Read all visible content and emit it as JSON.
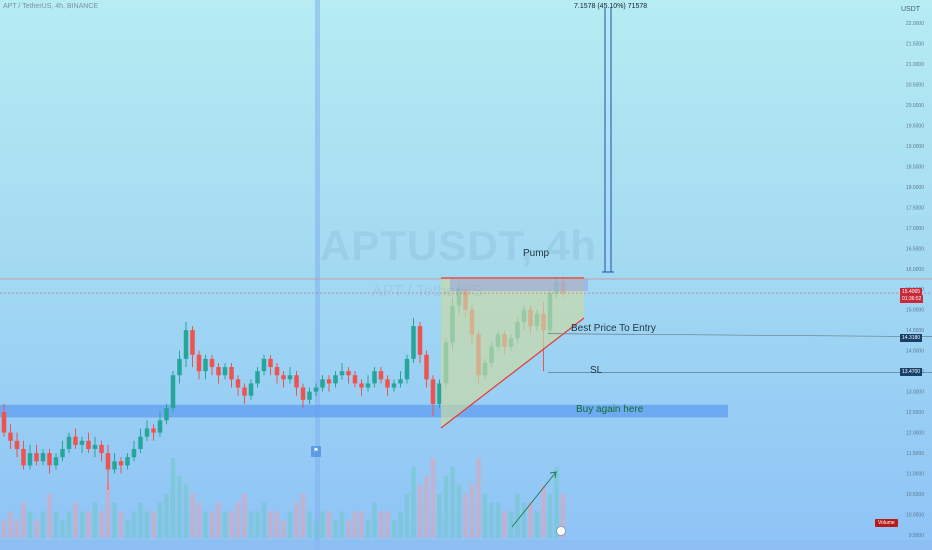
{
  "header": {
    "title": "APT / TetherUS, 4h, BINANCE"
  },
  "watermark": {
    "symbol": "APTUSDT, 4h",
    "sub": "APT / TetherUS"
  },
  "price_axis": {
    "unit": "USDT",
    "ticks": [
      "22.0000",
      "21.5000",
      "21.0000",
      "20.5000",
      "20.0000",
      "19.5000",
      "19.0000",
      "18.5000",
      "18.0000",
      "17.5000",
      "17.0000",
      "16.5000",
      "16.0000",
      "15.5000",
      "15.0000",
      "14.5000",
      "14.0000",
      "13.5000",
      "13.0000",
      "12.5000",
      "12.0000",
      "11.5000",
      "11.0000",
      "10.5000",
      "10.0000",
      "9.5000"
    ]
  },
  "price_tags": {
    "current": "15.4065",
    "current_time": "01:36:52",
    "entry": "14.3180",
    "sl": "13.4700"
  },
  "measure": {
    "label": "7.1578 (45.10%) 71578"
  },
  "annotations": {
    "pump": "Pump",
    "best_entry": "Best Price To Entry",
    "sl": "SL",
    "buy_again": "Buy again here"
  },
  "volume_label": "Volume",
  "colors": {
    "bull": "#26a69a",
    "bear": "#ef5350",
    "zone": "#5f9ef0",
    "triangle_fill": "#c7d9a8",
    "triangle_line": "#e53935",
    "measure_line": "#1f4fa8"
  },
  "chart_data": {
    "type": "candlestick",
    "title": "APTUSDT, 4h",
    "ylabel": "USDT",
    "ylim": [
      9.5,
      22.2
    ],
    "last_price": 15.4065,
    "levels": {
      "entry": 14.318,
      "sl": 13.47,
      "buy_zone": [
        12.37,
        12.68
      ],
      "resistance": 15.75
    },
    "candles": [
      [
        12.5,
        12.0,
        12.7,
        11.9
      ],
      [
        12.0,
        11.8,
        12.2,
        11.6
      ],
      [
        11.8,
        11.6,
        12.0,
        11.4
      ],
      [
        11.6,
        11.2,
        11.8,
        11.1
      ],
      [
        11.2,
        11.5,
        11.7,
        11.1
      ],
      [
        11.5,
        11.3,
        11.7,
        11.2
      ],
      [
        11.3,
        11.5,
        11.6,
        11.2
      ],
      [
        11.5,
        11.2,
        11.6,
        11.0
      ],
      [
        11.2,
        11.4,
        11.5,
        11.1
      ],
      [
        11.4,
        11.6,
        11.8,
        11.3
      ],
      [
        11.6,
        11.9,
        12.0,
        11.5
      ],
      [
        11.9,
        11.7,
        12.1,
        11.6
      ],
      [
        11.7,
        11.8,
        11.9,
        11.5
      ],
      [
        11.8,
        11.6,
        12.0,
        11.5
      ],
      [
        11.6,
        11.7,
        11.9,
        11.4
      ],
      [
        11.7,
        11.5,
        11.8,
        11.3
      ],
      [
        11.5,
        11.1,
        11.7,
        10.6
      ],
      [
        11.1,
        11.3,
        11.5,
        11.0
      ],
      [
        11.3,
        11.2,
        11.4,
        11.0
      ],
      [
        11.2,
        11.4,
        11.5,
        11.1
      ],
      [
        11.4,
        11.6,
        11.8,
        11.3
      ],
      [
        11.6,
        11.9,
        12.1,
        11.5
      ],
      [
        11.9,
        12.1,
        12.3,
        11.8
      ],
      [
        12.1,
        12.0,
        12.2,
        11.8
      ],
      [
        12.0,
        12.3,
        12.5,
        11.9
      ],
      [
        12.3,
        12.6,
        12.7,
        12.2
      ],
      [
        12.6,
        13.4,
        13.5,
        12.5
      ],
      [
        13.4,
        13.8,
        14.0,
        13.2
      ],
      [
        13.8,
        14.5,
        14.7,
        13.6
      ],
      [
        14.5,
        13.9,
        14.6,
        13.6
      ],
      [
        13.9,
        13.5,
        14.0,
        13.3
      ],
      [
        13.5,
        13.8,
        13.9,
        13.3
      ],
      [
        13.8,
        13.6,
        13.9,
        13.4
      ],
      [
        13.6,
        13.4,
        13.7,
        13.2
      ],
      [
        13.4,
        13.6,
        13.7,
        13.3
      ],
      [
        13.6,
        13.3,
        13.7,
        13.1
      ],
      [
        13.3,
        13.1,
        13.4,
        12.9
      ],
      [
        13.1,
        12.9,
        13.2,
        12.7
      ],
      [
        12.9,
        13.2,
        13.3,
        12.8
      ],
      [
        13.2,
        13.5,
        13.6,
        13.1
      ],
      [
        13.5,
        13.8,
        13.9,
        13.4
      ],
      [
        13.8,
        13.6,
        13.9,
        13.4
      ],
      [
        13.6,
        13.4,
        13.7,
        13.2
      ],
      [
        13.4,
        13.3,
        13.5,
        13.1
      ],
      [
        13.3,
        13.4,
        13.6,
        13.2
      ],
      [
        13.4,
        13.1,
        13.5,
        12.9
      ],
      [
        13.1,
        12.8,
        13.2,
        12.6
      ],
      [
        12.8,
        13.0,
        13.1,
        12.7
      ],
      [
        13.0,
        13.1,
        13.2,
        12.9
      ],
      [
        13.1,
        13.3,
        13.4,
        13.0
      ],
      [
        13.3,
        13.2,
        13.4,
        13.0
      ],
      [
        13.2,
        13.4,
        13.5,
        13.1
      ],
      [
        13.4,
        13.5,
        13.7,
        13.3
      ],
      [
        13.5,
        13.4,
        13.6,
        13.2
      ],
      [
        13.4,
        13.2,
        13.5,
        13.1
      ],
      [
        13.2,
        13.1,
        13.3,
        12.9
      ],
      [
        13.1,
        13.2,
        13.4,
        13.0
      ],
      [
        13.2,
        13.5,
        13.6,
        13.1
      ],
      [
        13.5,
        13.3,
        13.6,
        13.2
      ],
      [
        13.3,
        13.1,
        13.4,
        12.9
      ],
      [
        13.1,
        13.2,
        13.3,
        13.0
      ],
      [
        13.2,
        13.3,
        13.5,
        13.1
      ],
      [
        13.3,
        13.8,
        13.9,
        13.2
      ],
      [
        13.8,
        14.6,
        14.8,
        13.7
      ],
      [
        14.6,
        13.9,
        14.7,
        13.7
      ],
      [
        13.9,
        13.3,
        14.0,
        13.1
      ],
      [
        13.3,
        12.7,
        13.4,
        12.4
      ],
      [
        12.7,
        13.2,
        13.3,
        12.6
      ],
      [
        13.2,
        14.2,
        14.3,
        13.1
      ],
      [
        14.2,
        15.1,
        15.3,
        14.0
      ],
      [
        15.1,
        15.5,
        15.7,
        14.9
      ],
      [
        15.5,
        15.0,
        15.6,
        14.8
      ],
      [
        15.0,
        14.4,
        15.1,
        14.2
      ],
      [
        14.4,
        13.4,
        14.5,
        13.2
      ],
      [
        13.4,
        13.7,
        13.8,
        13.3
      ],
      [
        13.7,
        14.1,
        14.2,
        13.6
      ],
      [
        14.1,
        14.4,
        14.5,
        14.0
      ],
      [
        14.4,
        14.1,
        14.5,
        13.9
      ],
      [
        14.1,
        14.3,
        14.4,
        14.0
      ],
      [
        14.3,
        14.7,
        14.8,
        14.2
      ],
      [
        14.7,
        15.0,
        15.1,
        14.5
      ],
      [
        15.0,
        14.6,
        15.1,
        14.4
      ],
      [
        14.6,
        14.9,
        15.0,
        14.5
      ],
      [
        14.9,
        14.5,
        15.2,
        13.5
      ],
      [
        14.5,
        15.4,
        15.5,
        14.4
      ],
      [
        15.4,
        15.7,
        15.8,
        15.3
      ],
      [
        15.7,
        15.41,
        15.8,
        15.3
      ]
    ],
    "volumes": [
      2,
      3,
      2,
      4,
      3,
      2,
      3,
      5,
      3,
      2,
      3,
      4,
      3,
      3,
      4,
      3,
      6,
      4,
      3,
      2,
      3,
      4,
      3,
      3,
      4,
      5,
      9,
      7,
      6,
      5,
      4,
      3,
      3,
      4,
      3,
      3,
      4,
      5,
      3,
      3,
      4,
      3,
      3,
      2,
      3,
      4,
      5,
      3,
      2,
      3,
      3,
      2,
      3,
      2,
      3,
      3,
      2,
      4,
      3,
      3,
      2,
      3,
      5,
      8,
      6,
      7,
      9,
      5,
      7,
      8,
      6,
      5,
      6,
      9,
      5,
      4,
      4,
      3,
      3,
      5,
      4,
      4,
      3,
      6,
      5,
      8,
      5
    ]
  }
}
